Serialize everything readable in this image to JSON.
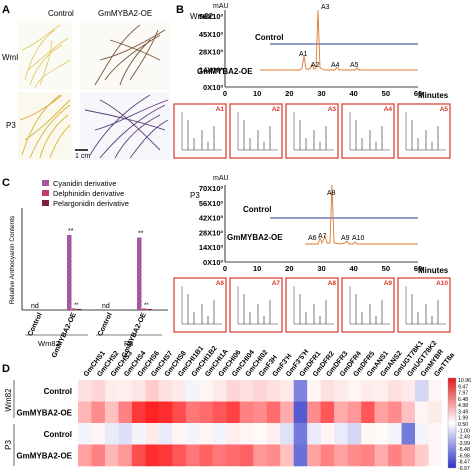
{
  "panel_labels": {
    "a": "A",
    "b": "B",
    "c": "C",
    "d": "D"
  },
  "panel_a": {
    "columns": [
      "Control",
      "GmMYBA2-OE"
    ],
    "rows": [
      "Wm82",
      "P3"
    ],
    "scale_bar": "1 cm"
  },
  "panel_b": {
    "y_unit": "mAU",
    "y_ticks": [
      "56X10³",
      "45X10³",
      "28X10³",
      "14X10³",
      "0X10³"
    ],
    "x_ticks": [
      "0",
      "10",
      "20",
      "30",
      "40",
      "50",
      "60"
    ],
    "x_unit": "Minutes",
    "genotype": "Wm82",
    "trace_control": "Control",
    "trace_oe": "GmMYBA2-OE",
    "peaks": [
      "A1",
      "A2",
      "A3",
      "A4",
      "A5"
    ],
    "spectra": [
      "A1",
      "A2",
      "A3",
      "A4",
      "A5"
    ]
  },
  "panel_b2": {
    "y_unit": "mAU",
    "y_ticks": [
      "70X10³",
      "56X10³",
      "42X10³",
      "28X10³",
      "14X10³",
      "0X10³"
    ],
    "x_ticks": [
      "0",
      "10",
      "20",
      "30",
      "40",
      "50",
      "60"
    ],
    "x_unit": "Minutes",
    "genotype": "P3",
    "trace_control": "Control",
    "trace_oe": "GmMYBA2-OE",
    "peaks": [
      "A6",
      "A7",
      "A8",
      "A9",
      "A10"
    ],
    "spectra": [
      "A6",
      "A7",
      "A8",
      "A9",
      "A10"
    ]
  },
  "panel_c": {
    "chart_data": {
      "type": "bar",
      "ylabel": "Relative Anthocyanin Contents",
      "categories": [
        "Control",
        "GmMYBA2-OE",
        "Control",
        "GmMYBA2-OE"
      ],
      "groups": [
        "Wm82",
        "P3"
      ],
      "series": [
        {
          "name": "Cyanidin derivative",
          "color": "#b05da8",
          "values": [
            0,
            30,
            0,
            29
          ]
        },
        {
          "name": "Delphinidin derivative",
          "color": "#c23b6e",
          "values": [
            0,
            0.6,
            0,
            0.6
          ]
        },
        {
          "name": "Pelargonidin derivative",
          "color": "#7a1f3d",
          "values": [
            0,
            0.4,
            0,
            0.4
          ]
        }
      ],
      "annotations": [
        "nd",
        "nd",
        "**",
        "**",
        "**",
        "**"
      ],
      "ylim": [
        0,
        40
      ]
    }
  },
  "panel_d": {
    "genes": [
      "GmCHS1",
      "GmCHS2",
      "GmCHS3",
      "GmCHS4",
      "GmCHS6",
      "GmCHS7",
      "GmCHS8",
      "GmCHI1B1",
      "GmCHI1B2",
      "GmCHI1A",
      "GmCHI06",
      "GmCHI04",
      "GmCHI02",
      "GmF3H",
      "GmF3'H",
      "GmF3'5'H",
      "GmDFR1",
      "GmDFR2",
      "GmDFR3",
      "GmDFR4",
      "GmDFR5",
      "GmANS1",
      "GmANS2",
      "GmUGT78K1",
      "GmUGT78K2",
      "GmMYBR",
      "GmTT8a"
    ],
    "rows": [
      "Control",
      "GmMYBA2-OE",
      "Control",
      "GmMYBA2-OE"
    ],
    "groups": [
      "Wm82",
      "P3"
    ],
    "legend": [
      "10.96",
      "9.47",
      "7.97",
      "6.48",
      "4.98",
      "3.49",
      "1.99",
      "0.50",
      "-1.00",
      "-2.49",
      "-3.99",
      "-5.48",
      "-6.98",
      "-8.47",
      "-9.97"
    ],
    "values": [
      [
        1.5,
        2.0,
        1.0,
        0.8,
        1.2,
        2.5,
        1.5,
        1.0,
        -0.5,
        0.5,
        1.0,
        2.0,
        1.5,
        2.0,
        1.5,
        1.0,
        -6.0,
        0.5,
        1.5,
        1.0,
        0.5,
        1.0,
        0.8,
        1.5,
        1.0,
        -2.0,
        0.5
      ],
      [
        3.5,
        5.5,
        3.0,
        6.0,
        9.5,
        10.5,
        10.0,
        8.5,
        6.5,
        7.0,
        8.0,
        9.0,
        6.0,
        5.5,
        7.0,
        4.0,
        -8.0,
        5.5,
        8.0,
        4.0,
        5.0,
        8.0,
        4.5,
        5.5,
        3.0,
        0.5,
        1.0
      ],
      [
        -0.5,
        0.5,
        -1.0,
        -1.5,
        -0.5,
        1.0,
        -1.0,
        0.5,
        -0.5,
        0.5,
        -0.5,
        0.8,
        0.5,
        0.3,
        0.8,
        -1.5,
        -6.5,
        -1.0,
        0.5,
        -1.0,
        -2.0,
        0.5,
        0.3,
        -0.5,
        -6.5,
        -0.5,
        0.5
      ],
      [
        4.5,
        6.0,
        3.5,
        5.0,
        8.5,
        10.0,
        9.5,
        8.0,
        6.5,
        7.5,
        6.5,
        7.0,
        7.5,
        5.0,
        5.5,
        3.0,
        -7.0,
        4.5,
        6.0,
        4.5,
        5.5,
        6.0,
        4.0,
        6.0,
        4.5,
        2.5,
        0.5
      ]
    ]
  }
}
